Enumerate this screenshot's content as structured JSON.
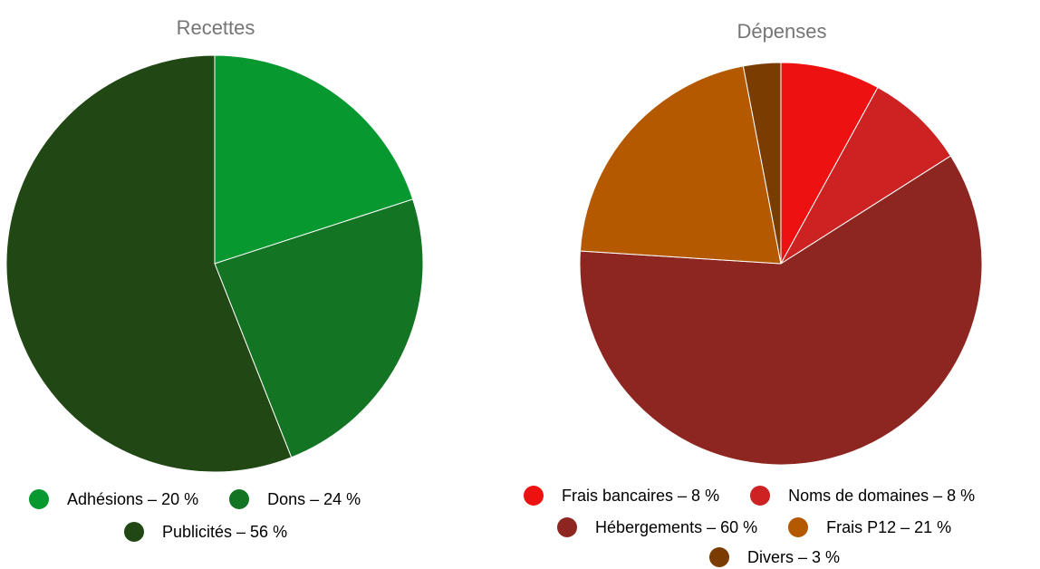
{
  "chart_data": [
    {
      "type": "pie",
      "title": "Recettes",
      "slices": [
        {
          "label": "Adhésions",
          "value": 20,
          "legend": "Adhésions – 20 %",
          "color": "#079830"
        },
        {
          "label": "Dons",
          "value": 24,
          "legend": "Dons – 24 %",
          "color": "#137524"
        },
        {
          "label": "Publicités",
          "value": 56,
          "legend": "Publicités – 56 %",
          "color": "#214814"
        }
      ],
      "legend_position": "bottom"
    },
    {
      "type": "pie",
      "title": "Dépenses",
      "slices": [
        {
          "label": "Frais bancaires",
          "value": 8,
          "legend": "Frais bancaires – 8 %",
          "color": "#ee1111"
        },
        {
          "label": "Noms de domaines",
          "value": 8,
          "legend": "Noms de domaines – 8 %",
          "color": "#cc2222"
        },
        {
          "label": "Hébergements",
          "value": 60,
          "legend": "Hébergements – 60 %",
          "color": "#8d2620"
        },
        {
          "label": "Frais P12",
          "value": 21,
          "legend": "Frais P12 – 21 %",
          "color": "#b55900"
        },
        {
          "label": "Divers",
          "value": 3,
          "legend": "Divers – 3 %",
          "color": "#7a3c00"
        }
      ],
      "legend_position": "bottom"
    }
  ]
}
